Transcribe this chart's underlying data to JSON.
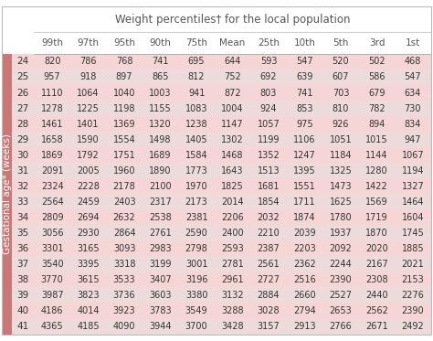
{
  "title": "Weight percentiles† for the local population",
  "col_headers": [
    "99th",
    "97th",
    "95th",
    "90th",
    "75th",
    "Mean",
    "25th",
    "10th",
    "5th",
    "3rd",
    "1st"
  ],
  "row_headers": [
    "24",
    "25",
    "26",
    "27",
    "28",
    "29",
    "30",
    "31",
    "32",
    "33",
    "34",
    "35",
    "36",
    "37",
    "38",
    "39",
    "40",
    "41"
  ],
  "row_label": "Gestational age* (weeks)",
  "table_data": [
    [
      820,
      786,
      768,
      741,
      695,
      644,
      593,
      547,
      520,
      502,
      468
    ],
    [
      957,
      918,
      897,
      865,
      812,
      752,
      692,
      639,
      607,
      586,
      547
    ],
    [
      1110,
      1064,
      1040,
      1003,
      941,
      872,
      803,
      741,
      703,
      679,
      634
    ],
    [
      1278,
      1225,
      1198,
      1155,
      1083,
      1004,
      924,
      853,
      810,
      782,
      730
    ],
    [
      1461,
      1401,
      1369,
      1320,
      1238,
      1147,
      1057,
      975,
      926,
      894,
      834
    ],
    [
      1658,
      1590,
      1554,
      1498,
      1405,
      1302,
      1199,
      1106,
      1051,
      1015,
      947
    ],
    [
      1869,
      1792,
      1751,
      1689,
      1584,
      1468,
      1352,
      1247,
      1184,
      1144,
      1067
    ],
    [
      2091,
      2005,
      1960,
      1890,
      1773,
      1643,
      1513,
      1395,
      1325,
      1280,
      1194
    ],
    [
      2324,
      2228,
      2178,
      2100,
      1970,
      1825,
      1681,
      1551,
      1473,
      1422,
      1327
    ],
    [
      2564,
      2459,
      2403,
      2317,
      2173,
      2014,
      1854,
      1711,
      1625,
      1569,
      1464
    ],
    [
      2809,
      2694,
      2632,
      2538,
      2381,
      2206,
      2032,
      1874,
      1780,
      1719,
      1604
    ],
    [
      3056,
      2930,
      2864,
      2761,
      2590,
      2400,
      2210,
      2039,
      1937,
      1870,
      1745
    ],
    [
      3301,
      3165,
      3093,
      2983,
      2798,
      2593,
      2387,
      2203,
      2092,
      2020,
      1885
    ],
    [
      3540,
      3395,
      3318,
      3199,
      3001,
      2781,
      2561,
      2362,
      2244,
      2167,
      2021
    ],
    [
      3770,
      3615,
      3533,
      3407,
      3196,
      2961,
      2727,
      2516,
      2390,
      2308,
      2153
    ],
    [
      3987,
      3823,
      3736,
      3603,
      3380,
      3132,
      2884,
      2660,
      2527,
      2440,
      2276
    ],
    [
      4186,
      4014,
      3923,
      3783,
      3549,
      3288,
      3028,
      2794,
      2653,
      2562,
      2390
    ],
    [
      4365,
      4185,
      4090,
      3944,
      3700,
      3428,
      3157,
      2913,
      2766,
      2671,
      2492
    ]
  ],
  "bg_color_row_even": "#f5d5d5",
  "bg_color_row_odd": "#eddada",
  "label_col_color": "#c87878",
  "text_color": "#333333",
  "header_text_color": "#555555",
  "title_color": "#555555",
  "font_size_data": 7.0,
  "font_size_header": 7.5,
  "font_size_title": 8.5,
  "font_size_row_header": 7.5,
  "font_size_label": 7.5
}
